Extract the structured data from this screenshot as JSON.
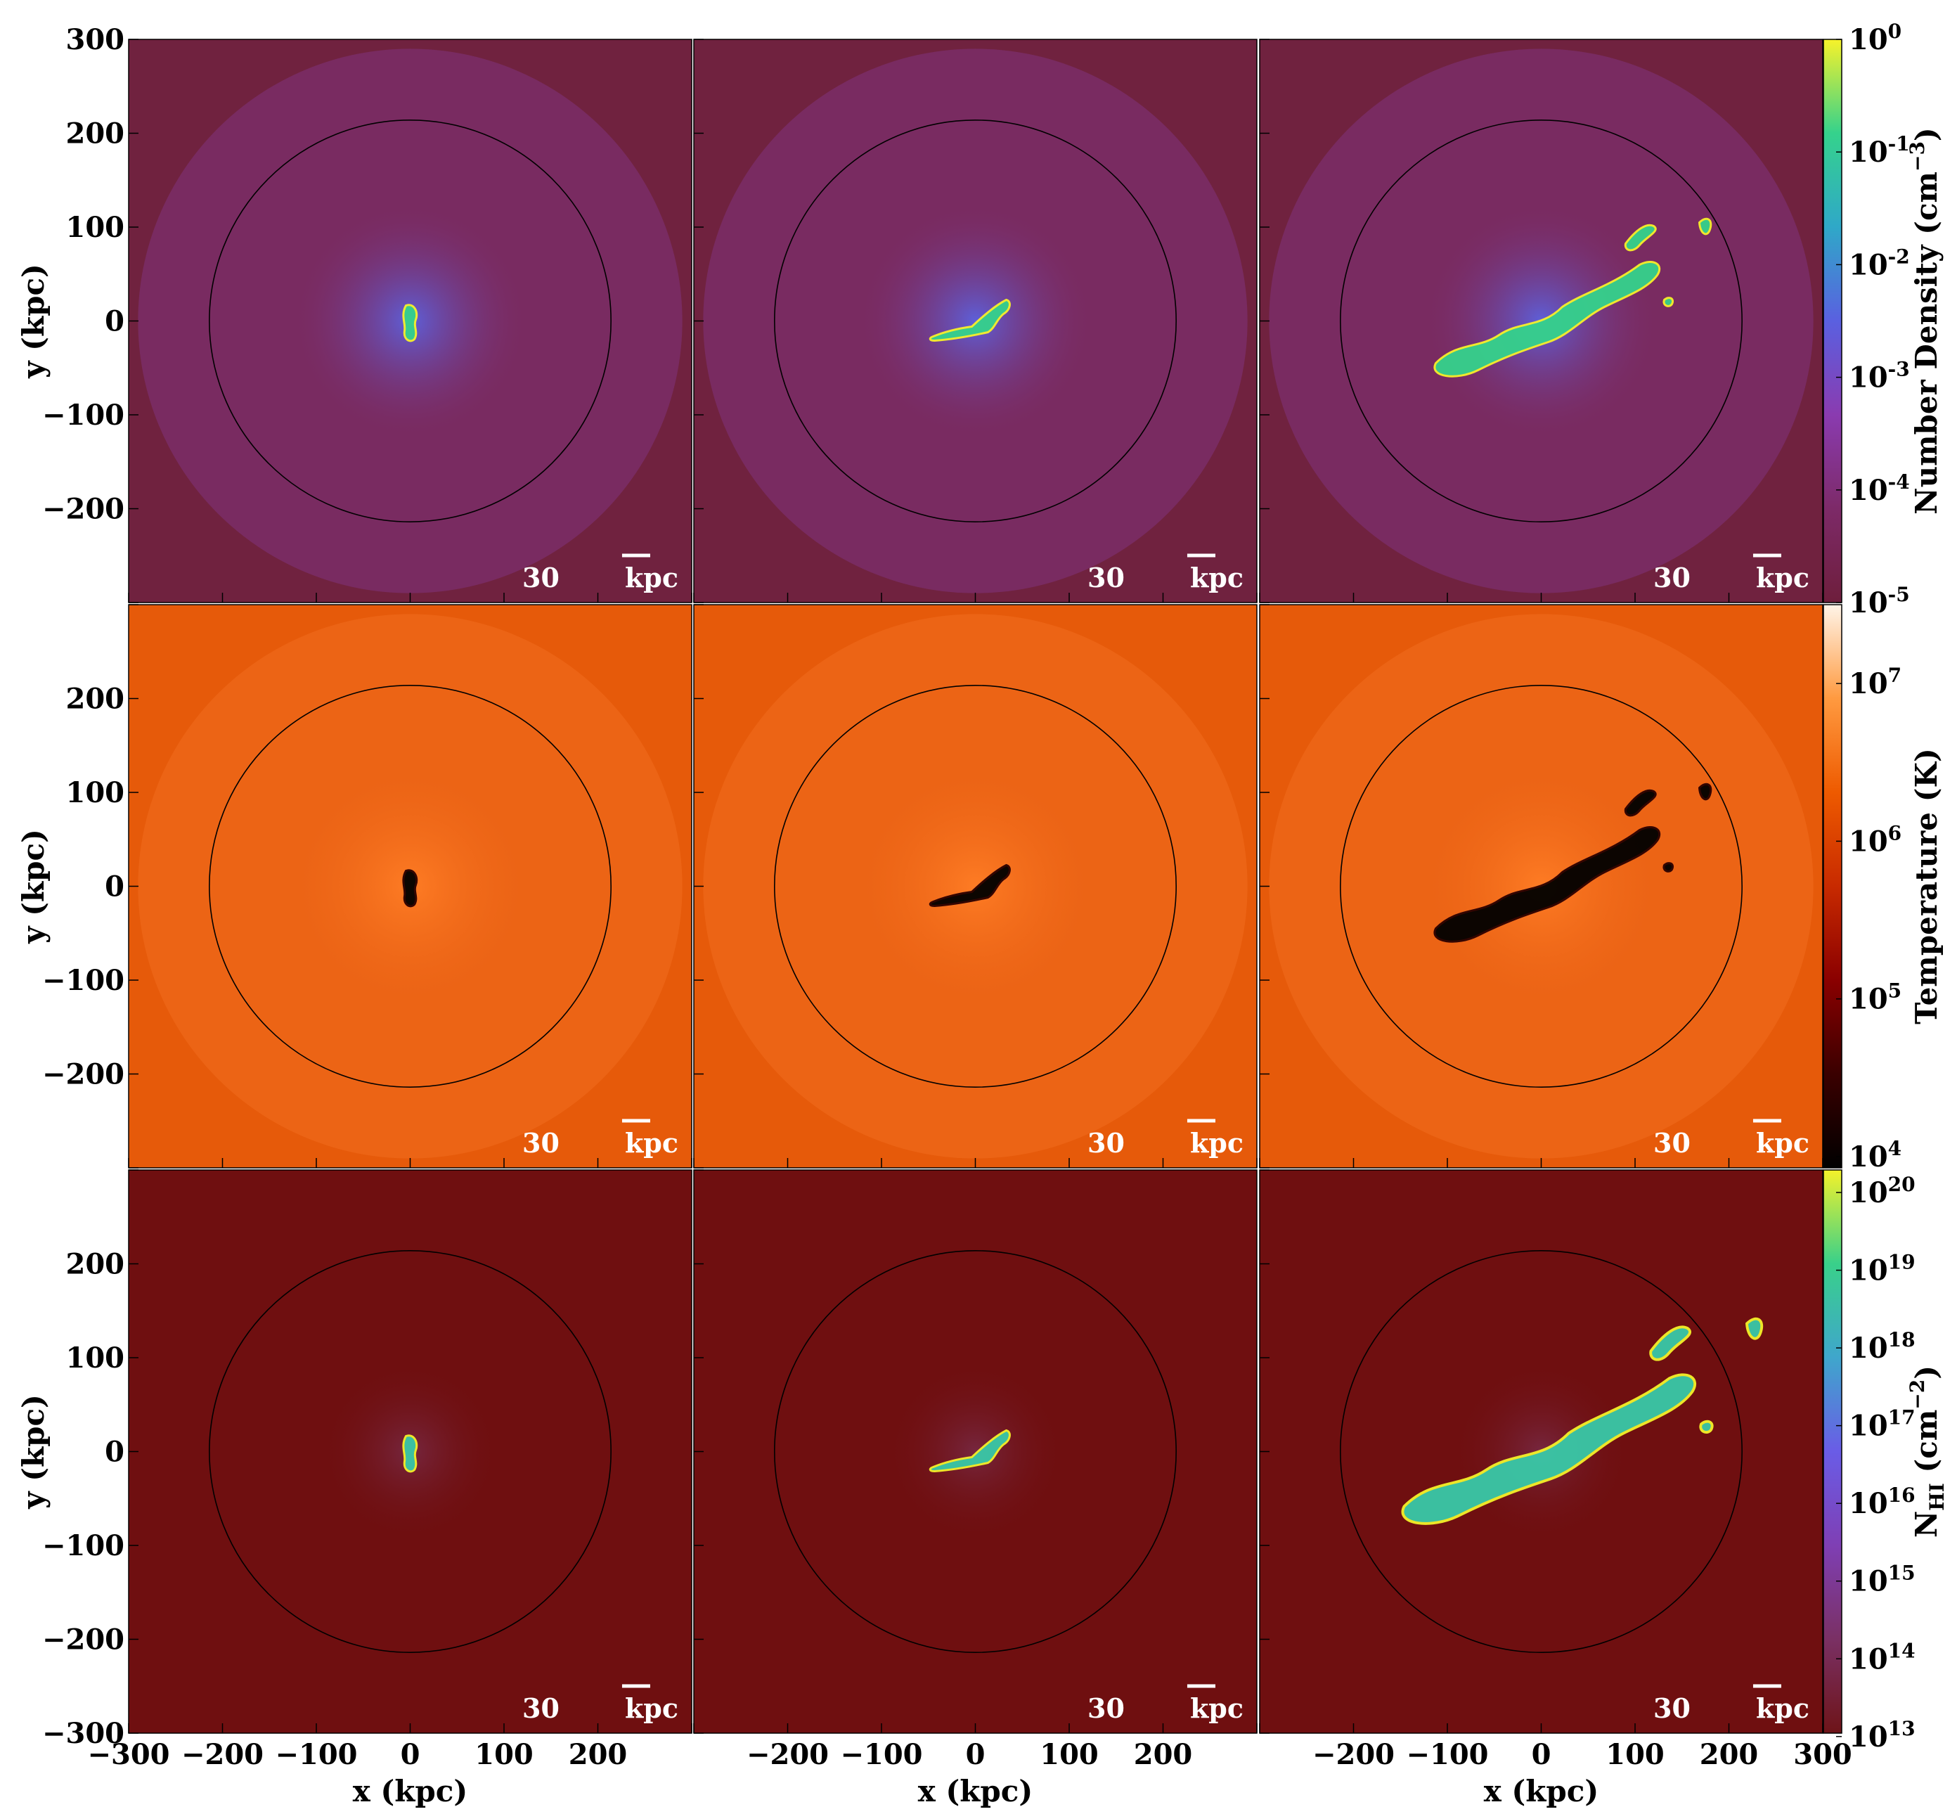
{
  "figure": {
    "panel_extent_kpc": [
      -300,
      300
    ],
    "virial_circle_radius_kpc": 214,
    "rows": [
      {
        "quantity": "number_density",
        "colormap": "plasma-like",
        "colors": [
          "#6e1e3c",
          "#7d2a68",
          "#8a3bb0",
          "#5a60e0",
          "#2fa8c8",
          "#35d28c",
          "#f7f22a"
        ],
        "background_color": "#70223f",
        "halo_color": "#7e3173",
        "core_color": "#5c62df",
        "colorbar": {
          "label_main": "Number Density (cm",
          "label_exp": "−3",
          "label_close": ")",
          "ticks": [
            {
              "base": "10",
              "exp": "0",
              "frac": 1.0
            },
            {
              "base": "10",
              "exp": "-1",
              "frac": 0.8
            },
            {
              "base": "10",
              "exp": "-2",
              "frac": 0.6
            },
            {
              "base": "10",
              "exp": "-3",
              "frac": 0.4
            },
            {
              "base": "10",
              "exp": "-4",
              "frac": 0.2
            },
            {
              "base": "10",
              "exp": "-5",
              "frac": 0.0
            }
          ]
        },
        "y_ticks": [
          "300",
          "200",
          "100",
          "0",
          "−100",
          "−200"
        ],
        "y_label": "y (kpc)"
      },
      {
        "quantity": "temperature",
        "colormap": "hot-like",
        "colors": [
          "#000000",
          "#3a0000",
          "#8a0000",
          "#c82a00",
          "#ee5a00",
          "#ff9a40",
          "#fff4e8"
        ],
        "background_color": "#e65a0a",
        "halo_color": "#f06a1c",
        "core_color": "#ff7d25",
        "colorbar": {
          "label_main": "Temperature (K)",
          "label_exp": "",
          "label_close": "",
          "ticks": [
            {
              "base": "10",
              "exp": "7",
              "frac": 0.86
            },
            {
              "base": "10",
              "exp": "6",
              "frac": 0.58
            },
            {
              "base": "10",
              "exp": "5",
              "frac": 0.3
            },
            {
              "base": "10",
              "exp": "4",
              "frac": 0.02
            }
          ]
        },
        "y_ticks": [
          "200",
          "100",
          "0",
          "−100",
          "−200"
        ],
        "y_label": "y (kpc)"
      },
      {
        "quantity": "N_HI",
        "colormap": "viridis-like",
        "colors": [
          "#6e1418",
          "#7a3064",
          "#7f3fb4",
          "#6a5ce6",
          "#3fa6cc",
          "#39d08a",
          "#f4f22a"
        ],
        "background_color": "#6f0f10",
        "halo_color": "#6f0f10",
        "core_color": "#7c3a66",
        "colorbar": {
          "label_main": "N",
          "label_sub": "HI",
          "label_tail": " (cm",
          "label_exp": "−2",
          "label_close": ")",
          "ticks": [
            {
              "base": "10",
              "exp": "20",
              "frac": 0.96
            },
            {
              "base": "10",
              "exp": "19",
              "frac": 0.822
            },
            {
              "base": "10",
              "exp": "18",
              "frac": 0.684
            },
            {
              "base": "10",
              "exp": "17",
              "frac": 0.546
            },
            {
              "base": "10",
              "exp": "16",
              "frac": 0.408
            },
            {
              "base": "10",
              "exp": "15",
              "frac": 0.27
            },
            {
              "base": "10",
              "exp": "14",
              "frac": 0.132
            },
            {
              "base": "10",
              "exp": "13",
              "frac": -0.006
            }
          ]
        },
        "y_ticks": [
          "200",
          "100",
          "0",
          "−100",
          "−200",
          "−300"
        ],
        "y_label": "y (kpc)"
      }
    ],
    "columns": [
      {
        "x_ticks": [
          "−300",
          "−200",
          "−100",
          "0",
          "100",
          "200"
        ],
        "x_label": "x (kpc)"
      },
      {
        "x_ticks": [
          "−200",
          "−100",
          "0",
          "100",
          "200"
        ],
        "x_label": "x (kpc)"
      },
      {
        "x_ticks": [
          "−200",
          "−100",
          "0",
          "100",
          "200",
          "300"
        ],
        "x_label": "x (kpc)"
      }
    ],
    "scale_bar_label_num": "30",
    "scale_bar_label_unit": "kpc",
    "scale_bar_length_kpc": 30
  }
}
